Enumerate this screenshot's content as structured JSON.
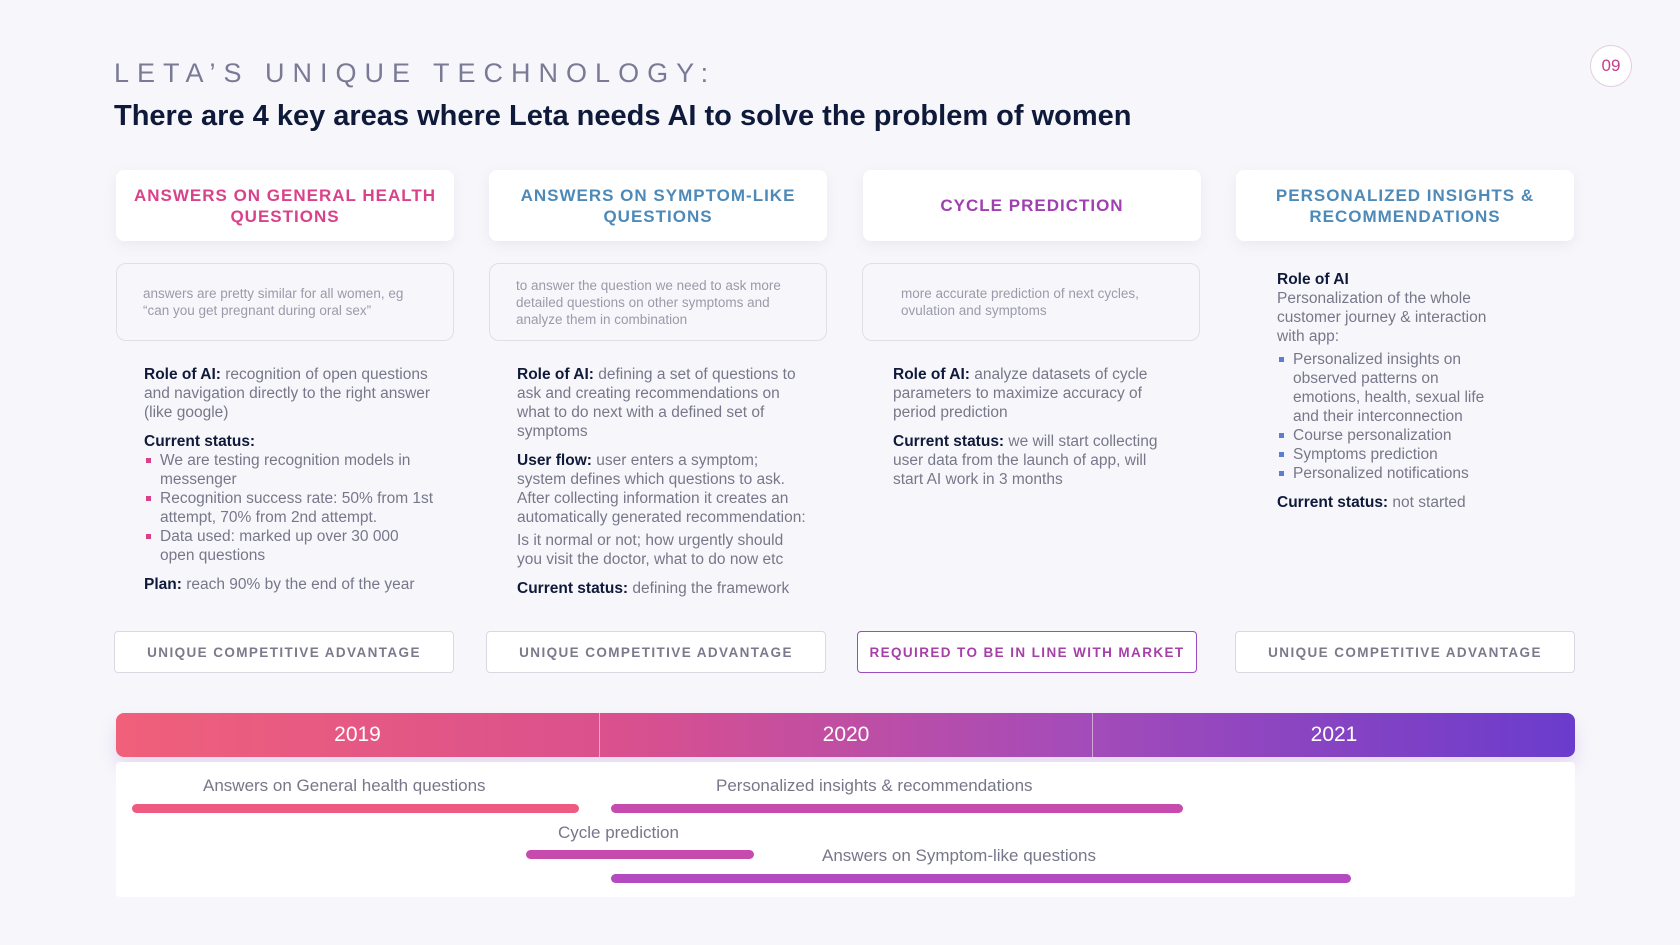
{
  "header": {
    "kicker": "LETA’S UNIQUE TECHNOLOGY:",
    "title": "There are 4 key areas where Leta needs AI to solve the problem of women",
    "page_number": "09"
  },
  "columns": [
    {
      "heading": "ANSWERS ON GENERAL HEALTH QUESTIONS",
      "heading_color": "#d9428a",
      "description": "answers are pretty similar for all women, eg “can you get pregnant during oral sex”",
      "role_label": "Role of AI:",
      "role_text": " recognition of open questions and navigation directly to the right answer (like google)",
      "status_label": "Current status:",
      "status_items": [
        "We are testing recognition models in messenger",
        "Recognition success rate: 50% from 1st attempt, 70% from 2nd attempt.",
        "Data used: marked up over 30 000 open questions"
      ],
      "plan_label": "Plan:",
      "plan_text": " reach 90% by the end of the year",
      "advantage": "UNIQUE COMPETITIVE ADVANTAGE"
    },
    {
      "heading": "ANSWERS ON SYMPTOM-LIKE QUESTIONS",
      "heading_color": "#4e8ab8",
      "description": "to answer the question we need to ask more detailed questions on other symptoms and analyze them in combination",
      "role_label": "Role of AI:",
      "role_text": " defining a set of questions to ask and creating recommendations on what to do next with a defined set of symptoms",
      "flow_label": "User flow:",
      "flow_text": " user enters a symptom; system defines which questions to ask. After collecting information it creates an automatically generated recommendation:",
      "flow_extra": "Is it normal or not; how urgently should you visit the doctor, what to do now etc",
      "status_label": "Current status:",
      "status_text": " defining the framework",
      "advantage": "UNIQUE COMPETITIVE ADVANTAGE"
    },
    {
      "heading": "CYCLE PREDICTION",
      "heading_color": "#a040b0",
      "description": "more accurate prediction of next cycles, ovulation and symptoms",
      "role_label": "Role of AI:",
      "role_text": " analyze datasets of cycle parameters to maximize accuracy of period prediction",
      "status_label": "Current status:",
      "status_text": " we will start collecting user data from the launch of app, will start AI work in 3 months",
      "advantage": "REQUIRED TO BE IN LINE WITH MARKET"
    },
    {
      "heading": "PERSONALIZED INSIGHTS & RECOMMENDATIONS",
      "heading_color": "#4e8ab8",
      "role_label": "Role of AI",
      "role_text": "Personalization of the whole customer journey & interaction with app:",
      "items": [
        "Personalized insights on observed patterns on emotions, health, sexual life and their interconnection",
        "Course personalization",
        "Symptoms prediction",
        "Personalized notifications"
      ],
      "status_label": "Current status:",
      "status_text": " not started",
      "advantage": "UNIQUE COMPETITIVE ADVANTAGE"
    }
  ],
  "timeline": {
    "years": [
      "2019",
      "2020",
      "2021"
    ],
    "tasks": [
      {
        "label": "Answers on General health questions",
        "color": "#ee5a80"
      },
      {
        "label": "Personalized insights & recommendations",
        "color": "#c74aae"
      },
      {
        "label": "Cycle prediction",
        "color": "#c74aae"
      },
      {
        "label": "Answers on Symptom-like questions",
        "color": "#b44ac0"
      }
    ]
  }
}
